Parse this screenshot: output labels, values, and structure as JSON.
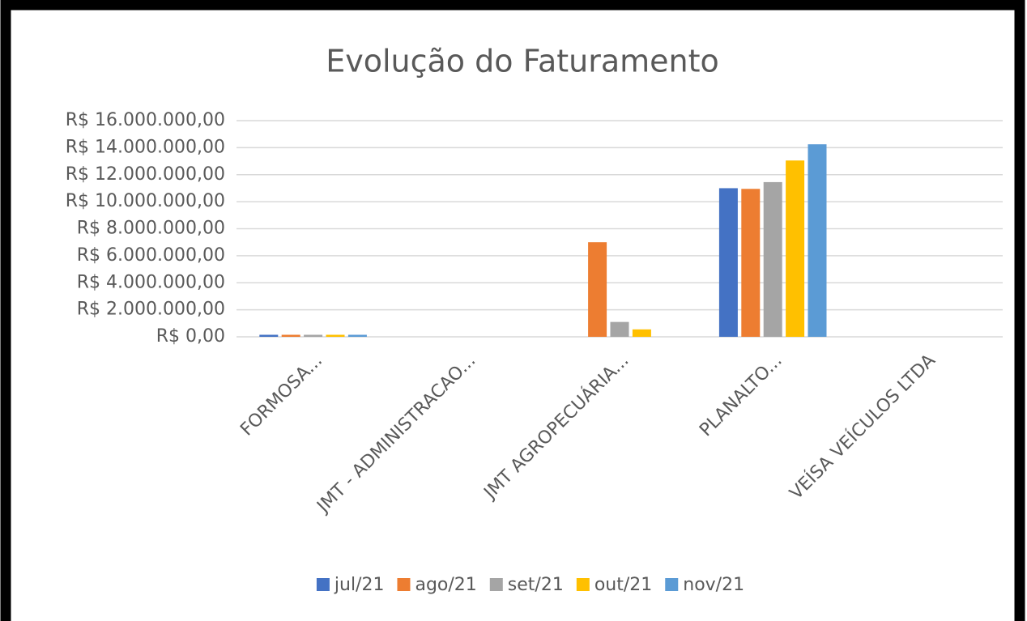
{
  "chart_data": {
    "type": "bar",
    "title": "Evolução do Faturamento",
    "categories": [
      "FORMOSA...",
      "JMT - ADMINISTRACAO...",
      "JMT AGROPECUÁRIA...",
      "PLANALTO...",
      "VEÍSA VEÍCULOS LTDA"
    ],
    "series": [
      {
        "name": "jul/21",
        "color": "#4472c4",
        "values": [
          150000,
          0,
          0,
          11000000,
          0
        ]
      },
      {
        "name": "ago/21",
        "color": "#ed7d31",
        "values": [
          150000,
          0,
          7000000,
          10950000,
          0
        ]
      },
      {
        "name": "set/21",
        "color": "#a5a5a5",
        "values": [
          150000,
          0,
          1100000,
          11450000,
          0
        ]
      },
      {
        "name": "out/21",
        "color": "#ffc000",
        "values": [
          150000,
          0,
          550000,
          13050000,
          0
        ]
      },
      {
        "name": "nov/21",
        "color": "#5b9bd5",
        "values": [
          150000,
          0,
          0,
          14250000,
          0
        ]
      }
    ],
    "ylim": [
      0,
      16000000
    ],
    "yticks": [
      {
        "value": 0,
        "label": "R$ 0,00"
      },
      {
        "value": 2000000,
        "label": "R$ 2.000.000,00"
      },
      {
        "value": 4000000,
        "label": "R$ 4.000.000,00"
      },
      {
        "value": 6000000,
        "label": "R$ 6.000.000,00"
      },
      {
        "value": 8000000,
        "label": "R$ 8.000.000,00"
      },
      {
        "value": 10000000,
        "label": "R$ 10.000.000,00"
      },
      {
        "value": 12000000,
        "label": "R$ 12.000.000,00"
      },
      {
        "value": 14000000,
        "label": "R$ 14.000.000,00"
      },
      {
        "value": 16000000,
        "label": "R$ 16.000.000,00"
      }
    ],
    "grid": true,
    "legend": "bottom"
  }
}
